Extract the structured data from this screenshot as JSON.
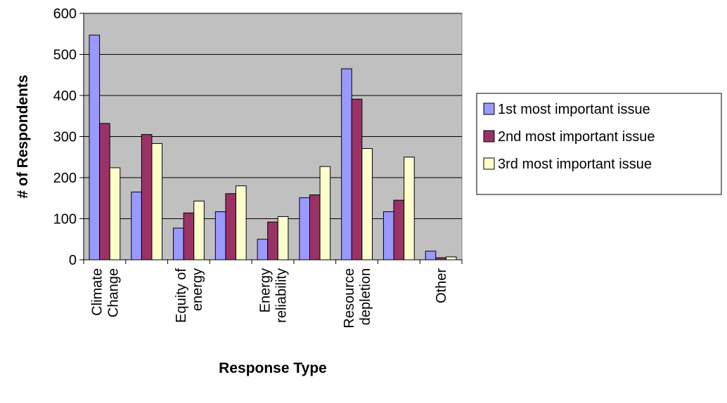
{
  "chart_data": {
    "type": "bar",
    "title": "",
    "xlabel": "Response Type",
    "ylabel": "# of Respondents",
    "ylim": [
      0,
      600
    ],
    "yticks": [
      0,
      100,
      200,
      300,
      400,
      500,
      600
    ],
    "grid": true,
    "legend_position": "right",
    "plot_background": "#c0c0c0",
    "categories": [
      [
        "Climate",
        "Change"
      ],
      [
        "",
        ""
      ],
      [
        "Equity of",
        "energy"
      ],
      [
        "",
        ""
      ],
      [
        "Energy",
        "reliability"
      ],
      [
        "",
        ""
      ],
      [
        "Resource",
        "depletion"
      ],
      [
        "",
        ""
      ],
      [
        "Other"
      ]
    ],
    "series": [
      {
        "name": "1st most important issue",
        "color": "#9999ff",
        "values": [
          547,
          165,
          77,
          117,
          50,
          151,
          465,
          117,
          21
        ]
      },
      {
        "name": "2nd most important issue",
        "color": "#993366",
        "values": [
          332,
          305,
          114,
          161,
          92,
          158,
          391,
          145,
          5
        ]
      },
      {
        "name": "3rd most important issue",
        "color": "#ffffcc",
        "values": [
          224,
          283,
          143,
          180,
          105,
          227,
          271,
          250,
          7
        ]
      }
    ]
  }
}
